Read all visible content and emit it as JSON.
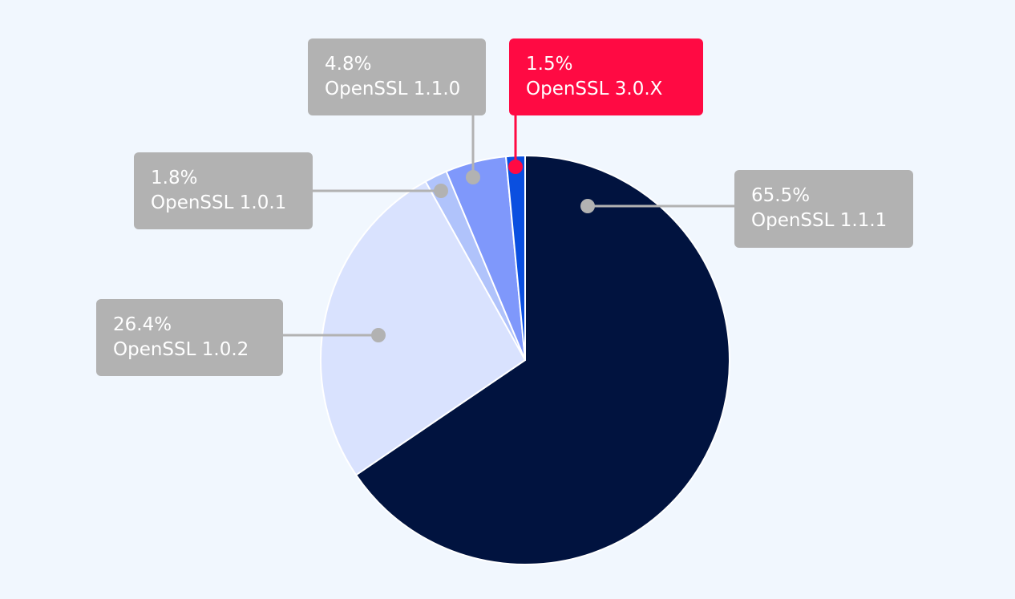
{
  "chart_data": {
    "type": "pie",
    "title": "",
    "slices": [
      {
        "label": "OpenSSL 1.1.1",
        "value": 65.5,
        "value_label": "65.5%",
        "color": "#01133f",
        "callout_color": "#b2b2b2"
      },
      {
        "label": "OpenSSL 1.0.2",
        "value": 26.4,
        "value_label": "26.4%",
        "color": "#d9e2fe",
        "callout_color": "#b2b2b2"
      },
      {
        "label": "OpenSSL 1.0.1",
        "value": 1.8,
        "value_label": "1.8%",
        "color": "#b0c3fb",
        "callout_color": "#b2b2b2"
      },
      {
        "label": "OpenSSL 1.1.0",
        "value": 4.8,
        "value_label": "4.8%",
        "color": "#7f98fb",
        "callout_color": "#b2b2b2"
      },
      {
        "label": "OpenSSL 3.0.X",
        "value": 1.5,
        "value_label": "1.5%",
        "color": "#0a4fe0",
        "callout_color": "#ff0a43"
      }
    ]
  }
}
